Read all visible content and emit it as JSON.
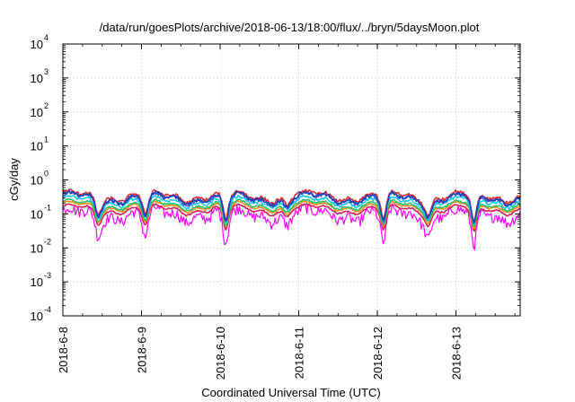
{
  "chart_data": {
    "type": "line",
    "title": "/data/run/goesPlots/archive/2018-06-13/18:00/flux/../bryn/5daysMoon.plot",
    "xlabel": "Coordinated Universal Time (UTC)",
    "ylabel": "cGy/day",
    "yscale": "log",
    "ylim": [
      0.0001,
      10000
    ],
    "xlim": [
      "2018-06-08 00:00",
      "2018-06-13 18:00"
    ],
    "x_ticks": [
      "2018-6-8",
      "2018-6-9",
      "2018-6-10",
      "2018-6-11",
      "2018-6-12",
      "2018-6-13"
    ],
    "y_ticks": [
      {
        "base": "10",
        "exp": "-4"
      },
      {
        "base": "10",
        "exp": "-3"
      },
      {
        "base": "10",
        "exp": "-2"
      },
      {
        "base": "10",
        "exp": "-1"
      },
      {
        "base": "10",
        "exp": "0"
      },
      {
        "base": "10",
        "exp": "1"
      },
      {
        "base": "10",
        "exp": "2"
      },
      {
        "base": "10",
        "exp": "3"
      },
      {
        "base": "10",
        "exp": "4"
      }
    ],
    "grid": true,
    "legend": "none",
    "series": [
      {
        "color": "#ff00ff",
        "level": 0.1,
        "dip_depth": 0.55,
        "noise": 0.35
      },
      {
        "color": "#d0205a",
        "level": 0.14,
        "dip_depth": 0.25,
        "noise": 0.05
      },
      {
        "color": "#ff8c1a",
        "level": 0.17,
        "dip_depth": 0.25,
        "noise": 0.05
      },
      {
        "color": "#2bbf6a",
        "level": 0.19,
        "dip_depth": 0.25,
        "noise": 0.06
      },
      {
        "color": "#18c8e8",
        "level": 0.24,
        "dip_depth": 0.3,
        "noise": 0.1
      },
      {
        "color": "#3a5fd0",
        "level": 0.3,
        "dip_depth": 0.35,
        "noise": 0.12
      },
      {
        "color": "#e03030",
        "level": 0.34,
        "dip_depth": 0.35,
        "noise": 0.12
      },
      {
        "color": "#2040c0",
        "level": 0.3,
        "dip_depth": 0.35,
        "noise": 0.12
      }
    ],
    "dips": [
      {
        "day": 0.45,
        "factor": 0.55
      },
      {
        "day": 1.05,
        "factor": 0.45
      },
      {
        "day": 2.07,
        "factor": 0.35
      },
      {
        "day": 2.85,
        "factor": 0.7
      },
      {
        "day": 4.08,
        "factor": 0.35
      },
      {
        "day": 4.65,
        "factor": 0.55
      },
      {
        "day": 5.23,
        "factor": 0.3
      }
    ]
  }
}
